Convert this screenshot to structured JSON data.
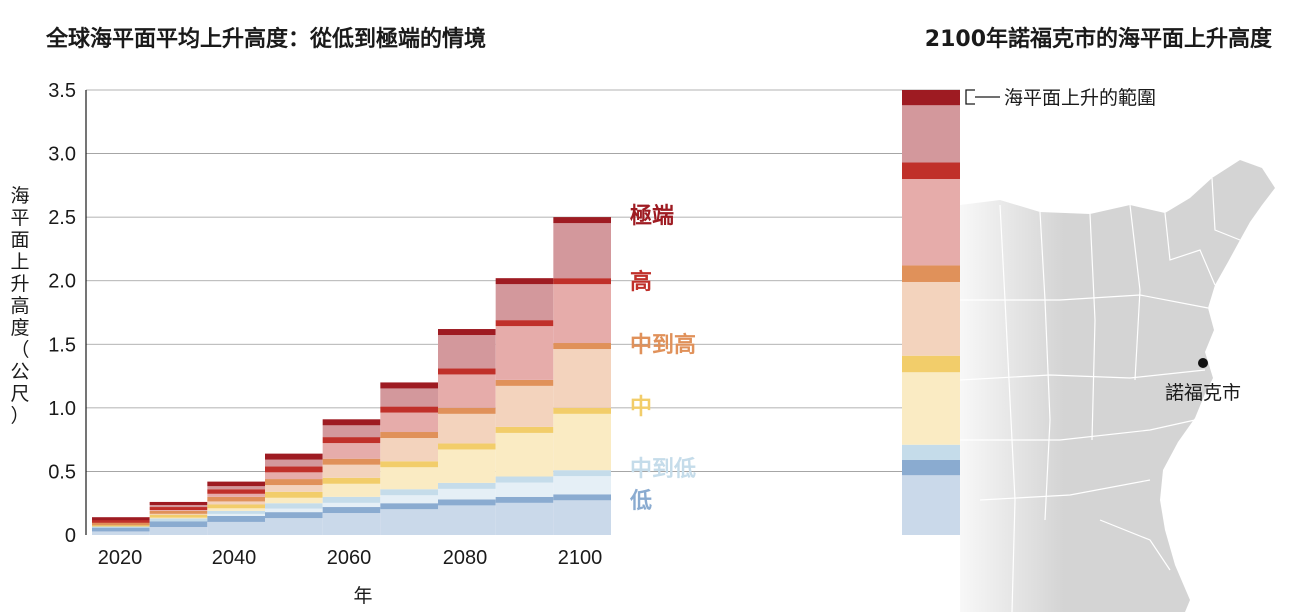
{
  "titles": {
    "left": "全球海平面平均上升高度：從低到極端的情境",
    "right": "2100年諾福克市的海平面上升高度"
  },
  "chart_data": {
    "type": "bar",
    "title": "全球海平面平均上升高度：從低到極端的情境",
    "xlabel": "年",
    "ylabel": "海平面上升高度（公尺）",
    "ylim": [
      0,
      3.5
    ],
    "yticks": [
      "0",
      "0.5",
      "1.0",
      "1.5",
      "2.0",
      "2.5",
      "3.0",
      "3.5"
    ],
    "xticks": [
      "2020",
      "2040",
      "2060",
      "2080",
      "2100"
    ],
    "x": [
      2020,
      2030,
      2040,
      2050,
      2060,
      2070,
      2080,
      2090,
      2100
    ],
    "stacked_steps": true,
    "series": [
      {
        "name": "低",
        "color": "#8aabd0",
        "values": [
          0.07,
          0.11,
          0.15,
          0.18,
          0.22,
          0.25,
          0.28,
          0.3,
          0.32
        ]
      },
      {
        "name": "中到低",
        "color": "#c5dcea",
        "values": [
          0.08,
          0.13,
          0.19,
          0.25,
          0.3,
          0.36,
          0.41,
          0.46,
          0.51
        ]
      },
      {
        "name": "中",
        "color": "#f2cd6a",
        "values": [
          0.09,
          0.16,
          0.24,
          0.34,
          0.45,
          0.58,
          0.72,
          0.85,
          1.0
        ]
      },
      {
        "name": "中到高",
        "color": "#e0915a",
        "values": [
          0.1,
          0.19,
          0.3,
          0.44,
          0.6,
          0.81,
          1.0,
          1.22,
          1.51
        ]
      },
      {
        "name": "高",
        "color": "#c0302a",
        "values": [
          0.12,
          0.22,
          0.36,
          0.54,
          0.77,
          1.01,
          1.31,
          1.69,
          2.02
        ]
      },
      {
        "name": "極端",
        "color": "#9e1b22",
        "values": [
          0.14,
          0.26,
          0.42,
          0.64,
          0.91,
          1.2,
          1.62,
          2.02,
          2.5
        ]
      }
    ],
    "norfolk_2100": {
      "label": "海平面上升的範圍",
      "ranges": [
        {
          "scenario": "低",
          "low": 0.47,
          "high": 0.59
        },
        {
          "scenario": "中到低",
          "low": 0.59,
          "high": 0.71
        },
        {
          "scenario": "中",
          "low": 1.28,
          "high": 1.41
        },
        {
          "scenario": "中到高",
          "low": 1.99,
          "high": 2.12
        },
        {
          "scenario": "高",
          "low": 2.8,
          "high": 2.93
        },
        {
          "scenario": "極端",
          "low": 3.38,
          "high": 3.5
        }
      ]
    }
  },
  "map": {
    "city_label": "諾福克市"
  }
}
